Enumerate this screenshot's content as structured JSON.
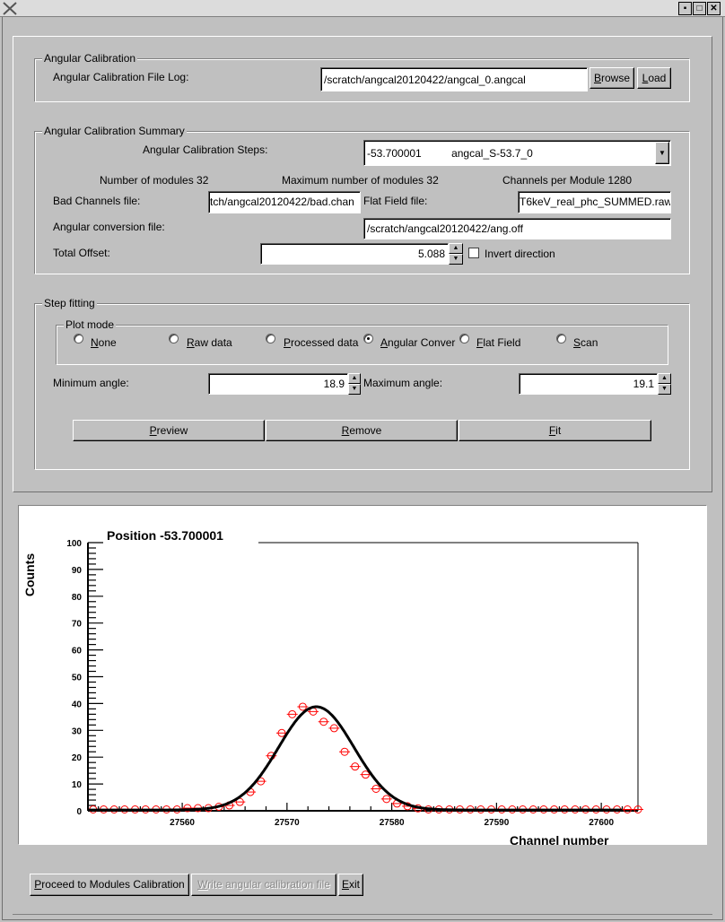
{
  "window": {
    "title_icon": "x-logo-icon",
    "controls": [
      "minimize-icon",
      "maximize-icon",
      "close-icon"
    ]
  },
  "angular_calibration": {
    "group_title": "Angular Calibration",
    "file_log_label": "Angular Calibration File Log:",
    "file_log_value": "/scratch/angcal20120422/angcal_0.angcal",
    "browse_label": "Browse",
    "load_label": "Load"
  },
  "summary": {
    "group_title": "Angular Calibration Summary",
    "steps_label": "Angular Calibration Steps:",
    "steps_selected_position": "-53.700001",
    "steps_selected_name": "angcal_S-53.7_0",
    "num_modules": "Number of modules 32",
    "max_modules": "Maximum number of modules 32",
    "channels_per_module": "Channels per Module 1280",
    "bad_channels_label": "Bad Channels file:",
    "bad_channels_value": "tch/angcal20120422/bad.chan",
    "flat_field_label": "Flat Field file:",
    "flat_field_value": "T6keV_real_phc_SUMMED.raw",
    "ang_conv_label": "Angular conversion file:",
    "ang_conv_value": "/scratch/angcal20120422/ang.off",
    "total_offset_label": "Total Offset:",
    "total_offset_value": "5.088",
    "invert_label": "Invert direction",
    "invert_checked": false
  },
  "step_fitting": {
    "group_title": "Step fitting",
    "plot_mode_title": "Plot mode",
    "plot_modes": [
      {
        "label": "None",
        "selected": false
      },
      {
        "label": "Raw data",
        "selected": false
      },
      {
        "label": "Processed data",
        "selected": false
      },
      {
        "label": "Angular Conver",
        "selected": true
      },
      {
        "label": "Flat Field",
        "selected": false
      },
      {
        "label": "Scan",
        "selected": false
      }
    ],
    "min_angle_label": "Minimum angle:",
    "min_angle_value": "18.9",
    "max_angle_label": "Maximum angle:",
    "max_angle_value": "19.1",
    "preview_label": "Preview",
    "remove_label": "Remove",
    "fit_label": "Fit"
  },
  "chart_data": {
    "type": "scatter",
    "title": "Position -53.700001",
    "xlabel": "Channel number",
    "ylabel": "Counts",
    "xlim": [
      27551,
      27603.5
    ],
    "ylim": [
      0,
      100
    ],
    "xticks": [
      27560,
      27570,
      27580,
      27590,
      27600
    ],
    "yticks": [
      0,
      10,
      20,
      30,
      40,
      50,
      60,
      70,
      80,
      90,
      100
    ],
    "grid": false,
    "marker_color": "#ff0000",
    "fit_color": "#000000",
    "x": [
      27551.5,
      27552.5,
      27553.5,
      27554.5,
      27555.5,
      27556.5,
      27557.5,
      27558.5,
      27559.5,
      27560.5,
      27561.5,
      27562.5,
      27563.5,
      27564.5,
      27565.5,
      27566.5,
      27567.5,
      27568.5,
      27569.5,
      27570.5,
      27571.5,
      27572.5,
      27573.5,
      27574.5,
      27575.5,
      27576.5,
      27577.5,
      27578.5,
      27579.5,
      27580.5,
      27581.5,
      27582.5,
      27583.5,
      27584.5,
      27585.5,
      27586.5,
      27587.5,
      27588.5,
      27589.5,
      27590.5,
      27591.5,
      27592.5,
      27593.5,
      27594.5,
      27595.5,
      27596.5,
      27597.5,
      27598.5,
      27599.5,
      27600.5,
      27601.5,
      27602.5,
      27603.5
    ],
    "y": [
      0.5,
      0.5,
      0.5,
      0.5,
      0.5,
      0.5,
      0.5,
      0.5,
      0.5,
      1,
      1,
      1,
      1.5,
      2,
      3.3,
      7,
      11,
      20.5,
      29,
      36,
      38.8,
      37,
      33.2,
      30.8,
      22,
      16.5,
      13.5,
      8.2,
      4.4,
      2.7,
      1.7,
      0.9,
      0.5,
      0.5,
      0.5,
      0.5,
      0.5,
      0.5,
      0.5,
      0.5,
      0.5,
      0.5,
      0.5,
      0.5,
      0.5,
      0.5,
      0.5,
      0.5,
      0.5,
      0.5,
      0.5,
      0.5,
      0.5
    ],
    "fit": {
      "model": "gaussian",
      "amplitude": 38.5,
      "mean": 27572.8,
      "sigma": 3.6,
      "baseline": 0.3
    }
  },
  "footer": {
    "proceed_label": "Proceed to Modules Calibration",
    "write_label": "Write angular calibration file",
    "exit_label": "Exit"
  }
}
